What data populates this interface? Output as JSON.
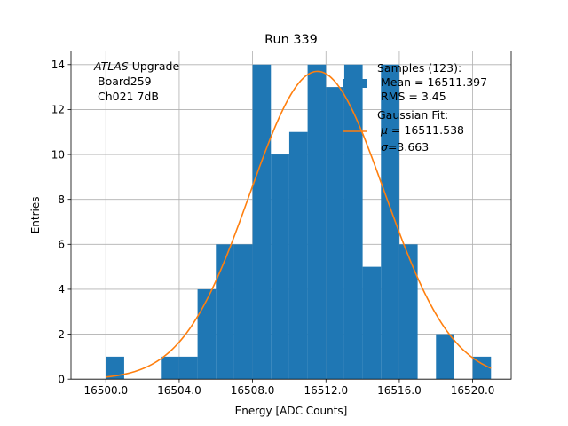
{
  "chart_data": {
    "type": "bar",
    "title": "Run 339",
    "xlabel": "Energy [ADC Counts]",
    "ylabel": "Entries",
    "xlim": [
      16498.1,
      16522.1
    ],
    "ylim": [
      0,
      14.6
    ],
    "xticks": [
      16500.0,
      16504.0,
      16508.0,
      16512.0,
      16516.0,
      16520.0
    ],
    "xtick_labels": [
      "16500.0",
      "16504.0",
      "16508.0",
      "16512.0",
      "16516.0",
      "16520.0"
    ],
    "yticks": [
      0,
      2,
      4,
      6,
      8,
      10,
      12,
      14
    ],
    "ytick_labels": [
      "0",
      "2",
      "4",
      "6",
      "8",
      "10",
      "12",
      "14"
    ],
    "grid": true,
    "bin_width": 1,
    "bins": [
      {
        "x0": 16500,
        "count": 1
      },
      {
        "x0": 16501,
        "count": 0
      },
      {
        "x0": 16502,
        "count": 0
      },
      {
        "x0": 16503,
        "count": 1
      },
      {
        "x0": 16504,
        "count": 1
      },
      {
        "x0": 16505,
        "count": 4
      },
      {
        "x0": 16506,
        "count": 6
      },
      {
        "x0": 16507,
        "count": 6
      },
      {
        "x0": 16508,
        "count": 14
      },
      {
        "x0": 16509,
        "count": 10
      },
      {
        "x0": 16510,
        "count": 11
      },
      {
        "x0": 16511,
        "count": 14
      },
      {
        "x0": 16512,
        "count": 13
      },
      {
        "x0": 16513,
        "count": 14
      },
      {
        "x0": 16514,
        "count": 5
      },
      {
        "x0": 16515,
        "count": 14
      },
      {
        "x0": 16516,
        "count": 6
      },
      {
        "x0": 16517,
        "count": 0
      },
      {
        "x0": 16518,
        "count": 2
      },
      {
        "x0": 16519,
        "count": 0
      },
      {
        "x0": 16520,
        "count": 1
      }
    ],
    "fit": {
      "mu": 16511.538,
      "sigma": 3.663,
      "amplitude": 13.7
    },
    "colors": {
      "histogram": "#1f77b4",
      "fit": "#ff7f0e",
      "grid": "#b0b0b0"
    },
    "annotation": {
      "line1_italic": "ATLAS",
      "line1_rest": " Upgrade",
      "line2": "Board259",
      "line3": "Ch021 7dB"
    },
    "legend": {
      "placement": "upper-right",
      "samples": {
        "line1": "Samples (123):",
        "line2": "Mean = 16511.397",
        "line3": "RMS = 3.45"
      },
      "fit": {
        "line1": "Gaussian Fit:",
        "mu_symbol": "μ",
        "mu_text": " = 16511.538",
        "sigma_symbol": "σ",
        "sigma_text": "=3.663"
      }
    }
  }
}
